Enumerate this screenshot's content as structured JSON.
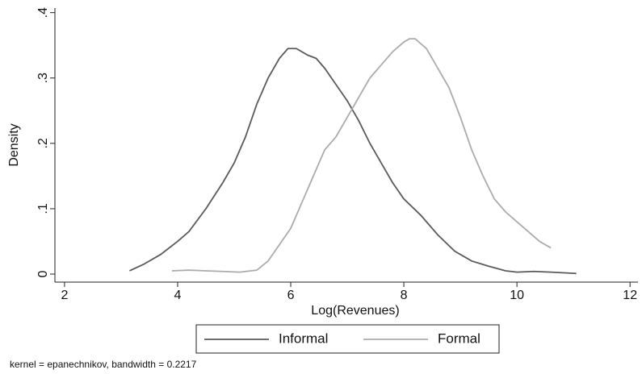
{
  "chart_data": {
    "type": "line",
    "xlabel": "Log(Revenues)",
    "ylabel": "Density",
    "note": "kernel = epanechnikov, bandwidth = 0.2217",
    "xlim": [
      1.83,
      12.14
    ],
    "ylim": [
      -0.0123,
      0.407
    ],
    "xticks": [
      2,
      4,
      6,
      8,
      10,
      12
    ],
    "yticks": [
      0,
      {
        "value": 0.1,
        "label": ".1"
      },
      {
        "value": 0.2,
        "label": ".2"
      },
      {
        "value": 0.3,
        "label": ".3"
      },
      {
        "value": 0.4,
        "label": ".4"
      }
    ],
    "series": [
      {
        "name": "Informal",
        "color": "#5a5a5a",
        "x": [
          3.15,
          3.4,
          3.7,
          4.0,
          4.2,
          4.5,
          4.8,
          5.0,
          5.2,
          5.4,
          5.6,
          5.8,
          5.95,
          6.1,
          6.3,
          6.45,
          6.6,
          6.8,
          7.0,
          7.2,
          7.4,
          7.6,
          7.8,
          8.0,
          8.3,
          8.6,
          8.9,
          9.2,
          9.5,
          9.8,
          10.0,
          10.3,
          10.6,
          11.05
        ],
        "values": [
          0.005,
          0.015,
          0.03,
          0.05,
          0.065,
          0.1,
          0.14,
          0.17,
          0.21,
          0.26,
          0.3,
          0.33,
          0.345,
          0.345,
          0.335,
          0.33,
          0.315,
          0.29,
          0.265,
          0.235,
          0.2,
          0.17,
          0.14,
          0.115,
          0.09,
          0.06,
          0.035,
          0.02,
          0.012,
          0.005,
          0.003,
          0.004,
          0.003,
          0.001
        ]
      },
      {
        "name": "Formal",
        "color": "#ababab",
        "x": [
          3.9,
          4.2,
          4.5,
          4.8,
          5.1,
          5.4,
          5.6,
          5.8,
          6.0,
          6.2,
          6.4,
          6.6,
          6.8,
          7.0,
          7.2,
          7.4,
          7.6,
          7.8,
          8.0,
          8.1,
          8.2,
          8.4,
          8.6,
          8.8,
          9.0,
          9.2,
          9.4,
          9.6,
          9.8,
          10.0,
          10.2,
          10.4,
          10.6
        ],
        "values": [
          0.005,
          0.006,
          0.005,
          0.004,
          0.003,
          0.006,
          0.02,
          0.045,
          0.07,
          0.11,
          0.15,
          0.19,
          0.21,
          0.24,
          0.27,
          0.3,
          0.32,
          0.34,
          0.355,
          0.36,
          0.36,
          0.345,
          0.315,
          0.285,
          0.24,
          0.19,
          0.15,
          0.115,
          0.095,
          0.08,
          0.065,
          0.05,
          0.04
        ]
      }
    ]
  }
}
